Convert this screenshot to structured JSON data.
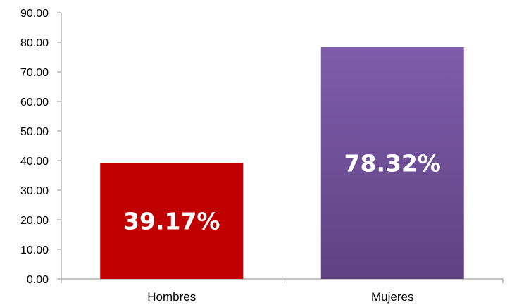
{
  "chart_data": {
    "type": "bar",
    "categories": [
      "Hombres",
      "Mujeres"
    ],
    "values": [
      39.17,
      78.32
    ],
    "data_labels": [
      "39.17%",
      "78.32%"
    ],
    "colors": [
      "#c00000",
      "#7b5ba8"
    ],
    "ylim": [
      0,
      90
    ],
    "yticks": [
      0,
      10,
      20,
      30,
      40,
      50,
      60,
      70,
      80,
      90
    ],
    "ytick_labels": [
      "0.00",
      "10.00",
      "20.00",
      "30.00",
      "40.00",
      "50.00",
      "60.00",
      "70.00",
      "80.00",
      "90.00"
    ],
    "title": "",
    "xlabel": "",
    "ylabel": "",
    "grid": false,
    "legend": "none"
  }
}
